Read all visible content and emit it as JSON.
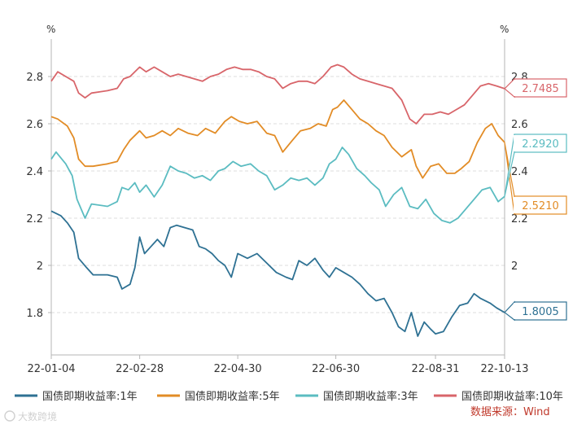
{
  "chart_data": {
    "type": "line",
    "title": "",
    "left_axis_unit": "%",
    "right_axis_unit": "%",
    "ylim": [
      1.6,
      2.9
    ],
    "y_ticks": [
      {
        "value": 1.8,
        "left": "1.8",
        "right": ""
      },
      {
        "value": 2.0,
        "left": "2",
        "right": "2"
      },
      {
        "value": 2.2,
        "left": "2.2",
        "right": "2.2"
      },
      {
        "value": 2.4,
        "left": "2.4",
        "right": "2.4"
      },
      {
        "value": 2.6,
        "left": "2.6",
        "right": "2.6"
      },
      {
        "value": 2.8,
        "left": "2.8",
        "right": "2.8"
      }
    ],
    "x_range": [
      "2022-01-04",
      "2022-10-13"
    ],
    "x_ticks": [
      {
        "date": "2022-01-04",
        "label": "22-01-04"
      },
      {
        "date": "2022-02-28",
        "label": "22-02-28"
      },
      {
        "date": "2022-04-30",
        "label": "22-04-30"
      },
      {
        "date": "2022-06-30",
        "label": "22-06-30"
      },
      {
        "date": "2022-08-31",
        "label": "22-08-31"
      },
      {
        "date": "2022-10-13",
        "label": "22-10-13"
      }
    ],
    "grid": "horizontal-dashed",
    "legend_position": "bottom",
    "source": "数据来源：Wind",
    "watermark": "大数跨境",
    "series": [
      {
        "name": "国债即期收益率:1年",
        "color": "#2e7193",
        "end_label": "1.8005",
        "points": [
          [
            "2022-01-04",
            2.23
          ],
          [
            "2022-01-10",
            2.21
          ],
          [
            "2022-01-14",
            2.18
          ],
          [
            "2022-01-18",
            2.14
          ],
          [
            "2022-01-21",
            2.03
          ],
          [
            "2022-01-26",
            1.99
          ],
          [
            "2022-01-30",
            1.96
          ],
          [
            "2022-02-08",
            1.96
          ],
          [
            "2022-02-14",
            1.95
          ],
          [
            "2022-02-17",
            1.9
          ],
          [
            "2022-02-22",
            1.92
          ],
          [
            "2022-02-25",
            1.99
          ],
          [
            "2022-02-28",
            2.12
          ],
          [
            "2022-03-03",
            2.05
          ],
          [
            "2022-03-07",
            2.08
          ],
          [
            "2022-03-11",
            2.11
          ],
          [
            "2022-03-15",
            2.08
          ],
          [
            "2022-03-19",
            2.16
          ],
          [
            "2022-03-23",
            2.17
          ],
          [
            "2022-03-28",
            2.16
          ],
          [
            "2022-04-02",
            2.15
          ],
          [
            "2022-04-06",
            2.08
          ],
          [
            "2022-04-10",
            2.07
          ],
          [
            "2022-04-14",
            2.05
          ],
          [
            "2022-04-18",
            2.02
          ],
          [
            "2022-04-22",
            2.0
          ],
          [
            "2022-04-26",
            1.95
          ],
          [
            "2022-04-30",
            2.05
          ],
          [
            "2022-05-06",
            2.03
          ],
          [
            "2022-05-12",
            2.05
          ],
          [
            "2022-05-18",
            2.01
          ],
          [
            "2022-05-24",
            1.97
          ],
          [
            "2022-05-30",
            1.95
          ],
          [
            "2022-06-03",
            1.94
          ],
          [
            "2022-06-07",
            2.02
          ],
          [
            "2022-06-12",
            2.0
          ],
          [
            "2022-06-17",
            2.03
          ],
          [
            "2022-06-22",
            1.98
          ],
          [
            "2022-06-26",
            1.95
          ],
          [
            "2022-06-30",
            1.99
          ],
          [
            "2022-07-05",
            1.97
          ],
          [
            "2022-07-10",
            1.95
          ],
          [
            "2022-07-15",
            1.92
          ],
          [
            "2022-07-20",
            1.88
          ],
          [
            "2022-07-25",
            1.85
          ],
          [
            "2022-07-30",
            1.86
          ],
          [
            "2022-08-04",
            1.8
          ],
          [
            "2022-08-08",
            1.74
          ],
          [
            "2022-08-12",
            1.72
          ],
          [
            "2022-08-16",
            1.8
          ],
          [
            "2022-08-20",
            1.7
          ],
          [
            "2022-08-24",
            1.76
          ],
          [
            "2022-08-28",
            1.73
          ],
          [
            "2022-08-31",
            1.71
          ],
          [
            "2022-09-05",
            1.72
          ],
          [
            "2022-09-10",
            1.78
          ],
          [
            "2022-09-15",
            1.83
          ],
          [
            "2022-09-20",
            1.84
          ],
          [
            "2022-09-24",
            1.88
          ],
          [
            "2022-09-28",
            1.86
          ],
          [
            "2022-10-04",
            1.84
          ],
          [
            "2022-10-08",
            1.82
          ],
          [
            "2022-10-13",
            1.8005
          ]
        ]
      },
      {
        "name": "国债即期收益率:5年",
        "color": "#e28c26",
        "end_label": "2.5210",
        "points": [
          [
            "2022-01-04",
            2.63
          ],
          [
            "2022-01-08",
            2.62
          ],
          [
            "2022-01-14",
            2.59
          ],
          [
            "2022-01-18",
            2.54
          ],
          [
            "2022-01-21",
            2.45
          ],
          [
            "2022-01-25",
            2.42
          ],
          [
            "2022-01-30",
            2.42
          ],
          [
            "2022-02-08",
            2.43
          ],
          [
            "2022-02-14",
            2.44
          ],
          [
            "2022-02-18",
            2.49
          ],
          [
            "2022-02-22",
            2.53
          ],
          [
            "2022-02-28",
            2.57
          ],
          [
            "2022-03-04",
            2.54
          ],
          [
            "2022-03-09",
            2.55
          ],
          [
            "2022-03-14",
            2.57
          ],
          [
            "2022-03-19",
            2.55
          ],
          [
            "2022-03-24",
            2.58
          ],
          [
            "2022-03-30",
            2.56
          ],
          [
            "2022-04-05",
            2.55
          ],
          [
            "2022-04-10",
            2.58
          ],
          [
            "2022-04-16",
            2.56
          ],
          [
            "2022-04-22",
            2.61
          ],
          [
            "2022-04-26",
            2.63
          ],
          [
            "2022-05-01",
            2.61
          ],
          [
            "2022-05-06",
            2.6
          ],
          [
            "2022-05-12",
            2.61
          ],
          [
            "2022-05-18",
            2.56
          ],
          [
            "2022-05-23",
            2.55
          ],
          [
            "2022-05-28",
            2.48
          ],
          [
            "2022-06-03",
            2.53
          ],
          [
            "2022-06-08",
            2.57
          ],
          [
            "2022-06-14",
            2.58
          ],
          [
            "2022-06-19",
            2.6
          ],
          [
            "2022-06-24",
            2.59
          ],
          [
            "2022-06-28",
            2.66
          ],
          [
            "2022-07-01",
            2.67
          ],
          [
            "2022-07-05",
            2.7
          ],
          [
            "2022-07-10",
            2.66
          ],
          [
            "2022-07-15",
            2.62
          ],
          [
            "2022-07-20",
            2.6
          ],
          [
            "2022-07-25",
            2.57
          ],
          [
            "2022-07-30",
            2.55
          ],
          [
            "2022-08-04",
            2.5
          ],
          [
            "2022-08-10",
            2.46
          ],
          [
            "2022-08-16",
            2.49
          ],
          [
            "2022-08-19",
            2.42
          ],
          [
            "2022-08-23",
            2.37
          ],
          [
            "2022-08-28",
            2.42
          ],
          [
            "2022-09-02",
            2.43
          ],
          [
            "2022-09-07",
            2.39
          ],
          [
            "2022-09-12",
            2.39
          ],
          [
            "2022-09-16",
            2.41
          ],
          [
            "2022-09-21",
            2.44
          ],
          [
            "2022-09-26",
            2.52
          ],
          [
            "2022-10-01",
            2.58
          ],
          [
            "2022-10-05",
            2.6
          ],
          [
            "2022-10-09",
            2.55
          ],
          [
            "2022-10-13",
            2.521
          ]
        ]
      },
      {
        "name": "国债即期收益率:3年",
        "color": "#5bbcc1",
        "end_label": "2.2920",
        "points": [
          [
            "2022-01-04",
            2.45
          ],
          [
            "2022-01-07",
            2.48
          ],
          [
            "2022-01-13",
            2.43
          ],
          [
            "2022-01-17",
            2.38
          ],
          [
            "2022-01-20",
            2.28
          ],
          [
            "2022-01-25",
            2.2
          ],
          [
            "2022-01-29",
            2.26
          ],
          [
            "2022-02-08",
            2.25
          ],
          [
            "2022-02-14",
            2.27
          ],
          [
            "2022-02-17",
            2.33
          ],
          [
            "2022-02-21",
            2.32
          ],
          [
            "2022-02-25",
            2.35
          ],
          [
            "2022-02-28",
            2.31
          ],
          [
            "2022-03-04",
            2.34
          ],
          [
            "2022-03-09",
            2.29
          ],
          [
            "2022-03-14",
            2.34
          ],
          [
            "2022-03-19",
            2.42
          ],
          [
            "2022-03-24",
            2.4
          ],
          [
            "2022-03-29",
            2.39
          ],
          [
            "2022-04-03",
            2.37
          ],
          [
            "2022-04-08",
            2.38
          ],
          [
            "2022-04-13",
            2.36
          ],
          [
            "2022-04-18",
            2.4
          ],
          [
            "2022-04-22",
            2.41
          ],
          [
            "2022-04-27",
            2.44
          ],
          [
            "2022-05-02",
            2.42
          ],
          [
            "2022-05-08",
            2.43
          ],
          [
            "2022-05-13",
            2.4
          ],
          [
            "2022-05-18",
            2.38
          ],
          [
            "2022-05-23",
            2.32
          ],
          [
            "2022-05-28",
            2.34
          ],
          [
            "2022-06-02",
            2.37
          ],
          [
            "2022-06-07",
            2.36
          ],
          [
            "2022-06-12",
            2.37
          ],
          [
            "2022-06-17",
            2.34
          ],
          [
            "2022-06-22",
            2.37
          ],
          [
            "2022-06-26",
            2.43
          ],
          [
            "2022-06-30",
            2.45
          ],
          [
            "2022-07-04",
            2.5
          ],
          [
            "2022-07-08",
            2.47
          ],
          [
            "2022-07-13",
            2.41
          ],
          [
            "2022-07-18",
            2.38
          ],
          [
            "2022-07-22",
            2.35
          ],
          [
            "2022-07-27",
            2.32
          ],
          [
            "2022-07-31",
            2.25
          ],
          [
            "2022-08-05",
            2.3
          ],
          [
            "2022-08-10",
            2.33
          ],
          [
            "2022-08-15",
            2.25
          ],
          [
            "2022-08-20",
            2.24
          ],
          [
            "2022-08-25",
            2.28
          ],
          [
            "2022-08-30",
            2.22
          ],
          [
            "2022-09-04",
            2.19
          ],
          [
            "2022-09-09",
            2.18
          ],
          [
            "2022-09-14",
            2.2
          ],
          [
            "2022-09-19",
            2.24
          ],
          [
            "2022-09-24",
            2.28
          ],
          [
            "2022-09-29",
            2.32
          ],
          [
            "2022-10-04",
            2.33
          ],
          [
            "2022-10-09",
            2.27
          ],
          [
            "2022-10-13",
            2.292
          ]
        ]
      },
      {
        "name": "国债即期收益率:10年",
        "color": "#d8656a",
        "end_label": "2.7485",
        "points": [
          [
            "2022-01-04",
            2.78
          ],
          [
            "2022-01-08",
            2.82
          ],
          [
            "2022-01-13",
            2.8
          ],
          [
            "2022-01-18",
            2.78
          ],
          [
            "2022-01-21",
            2.73
          ],
          [
            "2022-01-25",
            2.71
          ],
          [
            "2022-01-29",
            2.73
          ],
          [
            "2022-02-08",
            2.74
          ],
          [
            "2022-02-14",
            2.75
          ],
          [
            "2022-02-18",
            2.79
          ],
          [
            "2022-02-22",
            2.8
          ],
          [
            "2022-02-28",
            2.84
          ],
          [
            "2022-03-04",
            2.82
          ],
          [
            "2022-03-09",
            2.84
          ],
          [
            "2022-03-14",
            2.82
          ],
          [
            "2022-03-19",
            2.8
          ],
          [
            "2022-03-24",
            2.81
          ],
          [
            "2022-03-29",
            2.8
          ],
          [
            "2022-04-03",
            2.79
          ],
          [
            "2022-04-08",
            2.78
          ],
          [
            "2022-04-13",
            2.8
          ],
          [
            "2022-04-18",
            2.81
          ],
          [
            "2022-04-23",
            2.83
          ],
          [
            "2022-04-28",
            2.84
          ],
          [
            "2022-05-03",
            2.83
          ],
          [
            "2022-05-08",
            2.83
          ],
          [
            "2022-05-13",
            2.82
          ],
          [
            "2022-05-18",
            2.8
          ],
          [
            "2022-05-23",
            2.79
          ],
          [
            "2022-05-28",
            2.75
          ],
          [
            "2022-06-02",
            2.77
          ],
          [
            "2022-06-07",
            2.78
          ],
          [
            "2022-06-12",
            2.78
          ],
          [
            "2022-06-17",
            2.77
          ],
          [
            "2022-06-22",
            2.8
          ],
          [
            "2022-06-27",
            2.84
          ],
          [
            "2022-07-01",
            2.85
          ],
          [
            "2022-07-05",
            2.84
          ],
          [
            "2022-07-10",
            2.81
          ],
          [
            "2022-07-15",
            2.79
          ],
          [
            "2022-07-20",
            2.78
          ],
          [
            "2022-07-25",
            2.77
          ],
          [
            "2022-07-30",
            2.76
          ],
          [
            "2022-08-04",
            2.75
          ],
          [
            "2022-08-10",
            2.7
          ],
          [
            "2022-08-15",
            2.62
          ],
          [
            "2022-08-19",
            2.6
          ],
          [
            "2022-08-24",
            2.64
          ],
          [
            "2022-08-29",
            2.64
          ],
          [
            "2022-09-03",
            2.65
          ],
          [
            "2022-09-08",
            2.64
          ],
          [
            "2022-09-13",
            2.66
          ],
          [
            "2022-09-18",
            2.68
          ],
          [
            "2022-09-23",
            2.72
          ],
          [
            "2022-09-28",
            2.76
          ],
          [
            "2022-10-03",
            2.77
          ],
          [
            "2022-10-08",
            2.76
          ],
          [
            "2022-10-13",
            2.7485
          ]
        ]
      }
    ]
  }
}
